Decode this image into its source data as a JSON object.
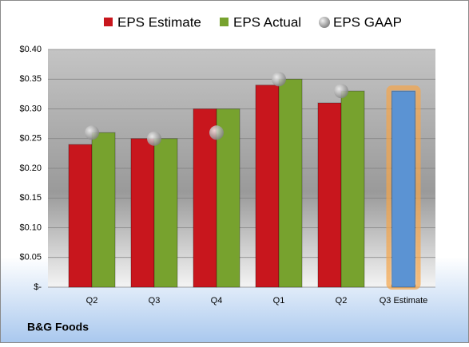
{
  "chart_data": {
    "type": "bar",
    "footer": "B&G Foods",
    "categories": [
      "Q2",
      "Q3",
      "Q4",
      "Q1",
      "Q2",
      "Q3 Estimate"
    ],
    "series": [
      {
        "name": "EPS Estimate",
        "color": "#c8161d",
        "values": [
          0.24,
          0.25,
          0.3,
          0.34,
          0.31,
          0.33
        ]
      },
      {
        "name": "EPS Actual",
        "color": "#77a22e",
        "values": [
          0.26,
          0.25,
          0.3,
          0.35,
          0.33,
          null
        ]
      },
      {
        "name": "EPS GAAP",
        "color": "#a6a6a6",
        "marker": "circle",
        "values": [
          0.26,
          0.25,
          0.26,
          0.35,
          0.33,
          null
        ]
      }
    ],
    "highlight": {
      "index": 5,
      "color": "#5b93d3",
      "glow": "#f5a54a"
    },
    "ylim": [
      0,
      0.4
    ],
    "yticks": [
      {
        "value": 0,
        "label": "$-"
      },
      {
        "value": 0.05,
        "label": "$0.05"
      },
      {
        "value": 0.1,
        "label": "$0.10"
      },
      {
        "value": 0.15,
        "label": "$0.15"
      },
      {
        "value": 0.2,
        "label": "$0.20"
      },
      {
        "value": 0.25,
        "label": "$0.25"
      },
      {
        "value": 0.3,
        "label": "$0.30"
      },
      {
        "value": 0.35,
        "label": "$0.35"
      },
      {
        "value": 0.4,
        "label": "$0.40"
      }
    ],
    "grid": true
  }
}
